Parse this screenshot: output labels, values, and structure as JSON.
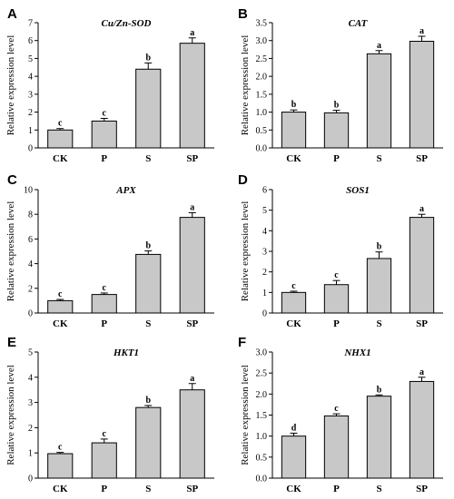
{
  "chart_data": [
    {
      "panel": "A",
      "type": "bar",
      "title": "Cu/Zn-SOD",
      "ylabel": "Relative expression level",
      "categories": [
        "CK",
        "P",
        "S",
        "SP"
      ],
      "values": [
        1.0,
        1.5,
        4.4,
        5.85
      ],
      "errors": [
        0.08,
        0.15,
        0.35,
        0.3
      ],
      "letters": [
        "c",
        "c",
        "b",
        "a"
      ],
      "ylim": [
        0,
        7
      ],
      "yticks": [
        "0",
        "1",
        "2",
        "3",
        "4",
        "5",
        "6",
        "7"
      ]
    },
    {
      "panel": "B",
      "type": "bar",
      "title": "CAT",
      "ylabel": "Relative expression level",
      "categories": [
        "CK",
        "P",
        "S",
        "SP"
      ],
      "values": [
        1.0,
        0.98,
        2.63,
        2.98
      ],
      "errors": [
        0.06,
        0.07,
        0.09,
        0.14
      ],
      "letters": [
        "b",
        "b",
        "a",
        "a"
      ],
      "ylim": [
        0,
        3.5
      ],
      "yticks": [
        "0.0",
        "0.5",
        "1.0",
        "1.5",
        "2.0",
        "2.5",
        "3.0",
        "3.5"
      ]
    },
    {
      "panel": "C",
      "type": "bar",
      "title": "APX",
      "ylabel": "Relative expression level",
      "categories": [
        "CK",
        "P",
        "S",
        "SP"
      ],
      "values": [
        1.0,
        1.5,
        4.75,
        7.75
      ],
      "errors": [
        0.1,
        0.12,
        0.28,
        0.38
      ],
      "letters": [
        "c",
        "c",
        "b",
        "a"
      ],
      "ylim": [
        0,
        10
      ],
      "yticks": [
        "0",
        "2",
        "4",
        "6",
        "8",
        "10"
      ]
    },
    {
      "panel": "D",
      "type": "bar",
      "title": "SOS1",
      "ylabel": "Relative expression level",
      "categories": [
        "CK",
        "P",
        "S",
        "SP"
      ],
      "values": [
        1.0,
        1.38,
        2.65,
        4.65
      ],
      "errors": [
        0.06,
        0.2,
        0.32,
        0.15
      ],
      "letters": [
        "c",
        "c",
        "b",
        "a"
      ],
      "ylim": [
        0,
        6
      ],
      "yticks": [
        "0",
        "1",
        "2",
        "3",
        "4",
        "5",
        "6"
      ]
    },
    {
      "panel": "E",
      "type": "bar",
      "title": "HKT1",
      "ylabel": "Relative expression level",
      "categories": [
        "CK",
        "P",
        "S",
        "SP"
      ],
      "values": [
        0.97,
        1.4,
        2.8,
        3.5
      ],
      "errors": [
        0.05,
        0.15,
        0.08,
        0.25
      ],
      "letters": [
        "c",
        "c",
        "b",
        "a"
      ],
      "ylim": [
        0,
        5
      ],
      "yticks": [
        "0",
        "1",
        "2",
        "3",
        "4",
        "5"
      ]
    },
    {
      "panel": "F",
      "type": "bar",
      "title": "NHX1",
      "ylabel": "Relative expression level",
      "categories": [
        "CK",
        "P",
        "S",
        "SP"
      ],
      "values": [
        1.0,
        1.48,
        1.95,
        2.3
      ],
      "errors": [
        0.07,
        0.05,
        0.03,
        0.1
      ],
      "letters": [
        "d",
        "c",
        "b",
        "a"
      ],
      "ylim": [
        0,
        3.0
      ],
      "yticks": [
        "0.0",
        "0.5",
        "1.0",
        "1.5",
        "2.0",
        "2.5",
        "3.0"
      ]
    }
  ]
}
